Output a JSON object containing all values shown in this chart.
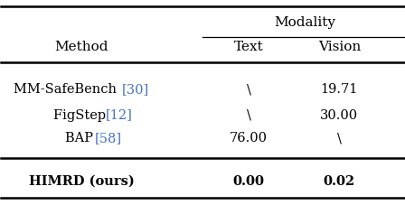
{
  "title_group": "Modality",
  "col_headers": [
    "Method",
    "Text",
    "Vision"
  ],
  "rows": [
    [
      "MM-SafeBench",
      "[30]",
      "\\",
      "19.71"
    ],
    [
      "FigStep",
      "[12]",
      "\\",
      "30.00"
    ],
    [
      "BAP",
      "[58]",
      "76.00",
      "\\"
    ]
  ],
  "last_row": [
    "HIMRD (ours)",
    "0.00",
    "0.02"
  ],
  "citation_color": "#4472C4",
  "bg_color": "#ffffff",
  "text_color": "#000000",
  "figsize": [
    4.48,
    2.28
  ],
  "dpi": 100,
  "fs_header": 11,
  "fs_body": 10.5,
  "lw_thick": 1.8,
  "lw_thin": 0.9
}
